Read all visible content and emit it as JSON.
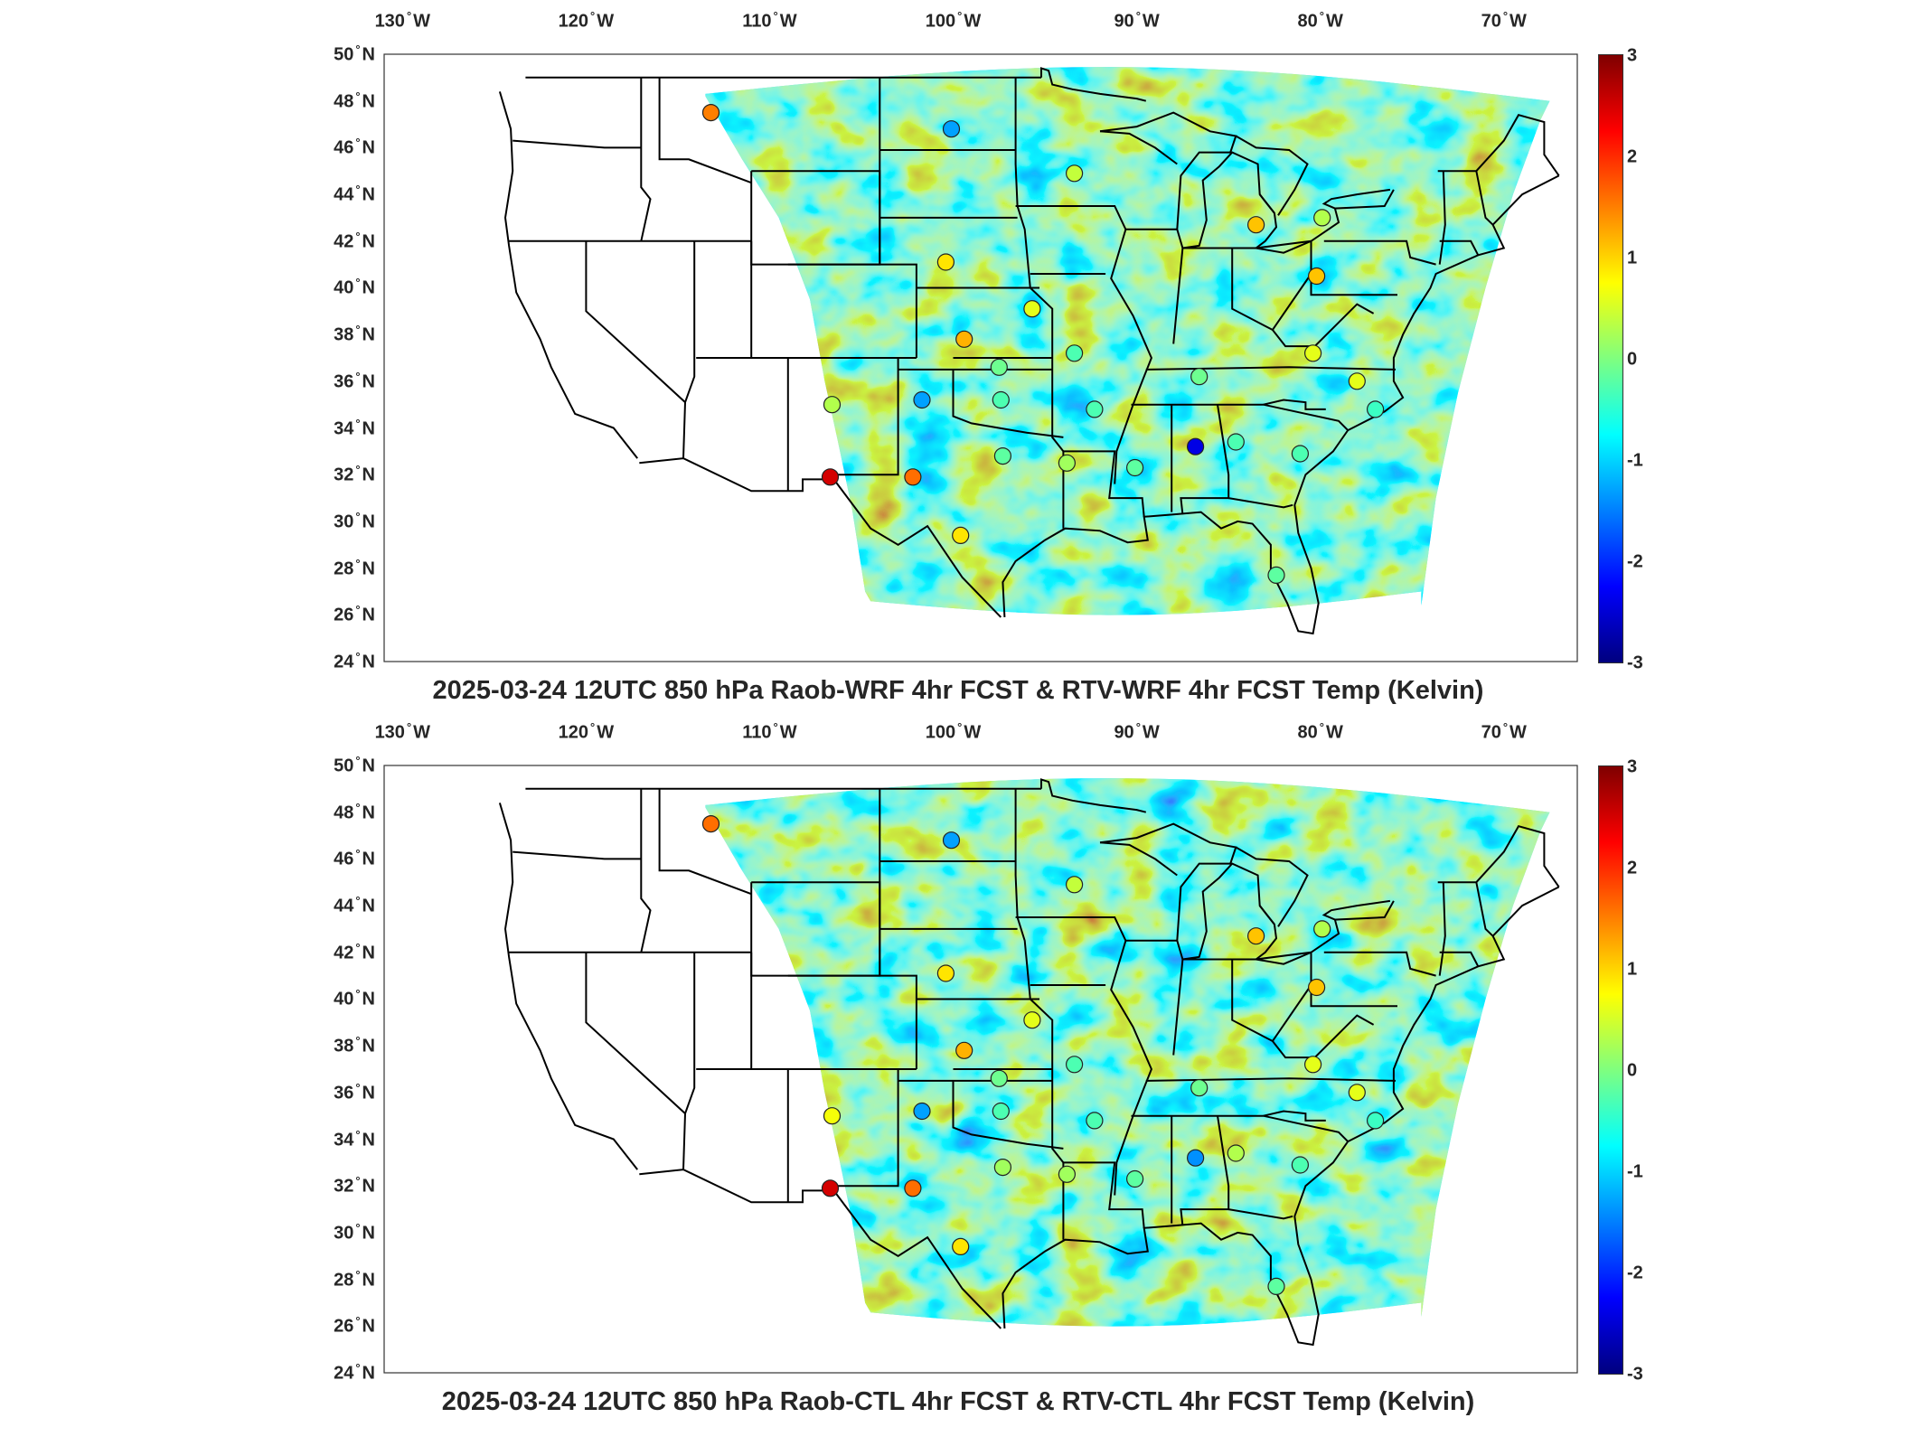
{
  "colors": {
    "colormap": [
      "#00007f",
      "#0000ff",
      "#007fff",
      "#00ffff",
      "#7fff7f",
      "#ffff00",
      "#ff7f00",
      "#ff0000",
      "#7f0000"
    ],
    "border": "#000000",
    "land": "#ffffff"
  },
  "axes": {
    "lon_ticks": [
      "130",
      "120",
      "110",
      "100",
      "90",
      "80",
      "70"
    ],
    "lon_suffix": "W",
    "lat_ticks": [
      "50",
      "48",
      "46",
      "44",
      "42",
      "40",
      "38",
      "36",
      "34",
      "32",
      "30",
      "28",
      "26",
      "24"
    ],
    "lat_suffix": "N",
    "lon_range": [
      -131,
      -66
    ],
    "lat_range": [
      24,
      50
    ]
  },
  "colorbar": {
    "ticks": [
      "3",
      "2",
      "1",
      "0",
      "-1",
      "-2",
      "-3"
    ],
    "range": [
      -3,
      3
    ]
  },
  "panels": [
    {
      "title": "2025-03-24 12UTC 850 hPa Raob-WRF 4hr FCST & RTV-WRF 4hr FCST Temp (Kelvin)",
      "stations": [
        {
          "lon": -113.2,
          "lat": 47.5,
          "v": 1.5
        },
        {
          "lon": -100.1,
          "lat": 46.8,
          "v": -1.3
        },
        {
          "lon": -93.4,
          "lat": 44.9,
          "v": 0.4
        },
        {
          "lon": -83.5,
          "lat": 42.7,
          "v": 1.1
        },
        {
          "lon": -79.9,
          "lat": 43.0,
          "v": 0.3
        },
        {
          "lon": -100.4,
          "lat": 41.1,
          "v": 0.9
        },
        {
          "lon": -80.2,
          "lat": 40.5,
          "v": 1.1
        },
        {
          "lon": -95.7,
          "lat": 39.1,
          "v": 0.6
        },
        {
          "lon": -99.4,
          "lat": 37.8,
          "v": 1.2
        },
        {
          "lon": -93.4,
          "lat": 37.2,
          "v": -0.3
        },
        {
          "lon": -80.4,
          "lat": 37.2,
          "v": 0.6
        },
        {
          "lon": -97.5,
          "lat": 36.6,
          "v": -0.1
        },
        {
          "lon": -86.6,
          "lat": 36.2,
          "v": -0.1
        },
        {
          "lon": -78.0,
          "lat": 36.0,
          "v": 0.6
        },
        {
          "lon": -106.6,
          "lat": 35.0,
          "v": 0.3
        },
        {
          "lon": -101.7,
          "lat": 35.2,
          "v": -1.3
        },
        {
          "lon": -97.4,
          "lat": 35.2,
          "v": -0.3
        },
        {
          "lon": -92.3,
          "lat": 34.8,
          "v": -0.3
        },
        {
          "lon": -77.0,
          "lat": 34.8,
          "v": -0.4
        },
        {
          "lon": -86.8,
          "lat": 33.2,
          "v": -2.4
        },
        {
          "lon": -84.6,
          "lat": 33.4,
          "v": -0.3
        },
        {
          "lon": -97.3,
          "lat": 32.8,
          "v": -0.2
        },
        {
          "lon": -93.8,
          "lat": 32.5,
          "v": 0.2
        },
        {
          "lon": -90.1,
          "lat": 32.3,
          "v": -0.2
        },
        {
          "lon": -81.1,
          "lat": 32.9,
          "v": -0.3
        },
        {
          "lon": -106.7,
          "lat": 31.9,
          "v": 2.5
        },
        {
          "lon": -102.2,
          "lat": 31.9,
          "v": 1.6
        },
        {
          "lon": -99.6,
          "lat": 29.4,
          "v": 0.9
        },
        {
          "lon": -82.4,
          "lat": 27.7,
          "v": -0.2
        }
      ]
    },
    {
      "title": "2025-03-24 12UTC 850 hPa Raob-CTL 4hr FCST & RTV-CTL 4hr FCST Temp (Kelvin)",
      "stations": [
        {
          "lon": -113.2,
          "lat": 47.5,
          "v": 1.6
        },
        {
          "lon": -100.1,
          "lat": 46.8,
          "v": -1.3
        },
        {
          "lon": -93.4,
          "lat": 44.9,
          "v": 0.4
        },
        {
          "lon": -83.5,
          "lat": 42.7,
          "v": 1.1
        },
        {
          "lon": -79.9,
          "lat": 43.0,
          "v": 0.3
        },
        {
          "lon": -100.4,
          "lat": 41.1,
          "v": 0.9
        },
        {
          "lon": -80.2,
          "lat": 40.5,
          "v": 1.1
        },
        {
          "lon": -95.7,
          "lat": 39.1,
          "v": 0.6
        },
        {
          "lon": -99.4,
          "lat": 37.8,
          "v": 1.2
        },
        {
          "lon": -93.4,
          "lat": 37.2,
          "v": -0.3
        },
        {
          "lon": -80.4,
          "lat": 37.2,
          "v": 0.6
        },
        {
          "lon": -97.5,
          "lat": 36.6,
          "v": -0.1
        },
        {
          "lon": -86.6,
          "lat": 36.2,
          "v": -0.1
        },
        {
          "lon": -78.0,
          "lat": 36.0,
          "v": 0.6
        },
        {
          "lon": -106.6,
          "lat": 35.0,
          "v": 0.7
        },
        {
          "lon": -101.7,
          "lat": 35.2,
          "v": -1.3
        },
        {
          "lon": -97.4,
          "lat": 35.2,
          "v": -0.3
        },
        {
          "lon": -92.3,
          "lat": 34.8,
          "v": -0.3
        },
        {
          "lon": -77.0,
          "lat": 34.8,
          "v": -0.4
        },
        {
          "lon": -86.8,
          "lat": 33.2,
          "v": -1.4
        },
        {
          "lon": -84.6,
          "lat": 33.4,
          "v": 0.3
        },
        {
          "lon": -97.3,
          "lat": 32.8,
          "v": 0.2
        },
        {
          "lon": -93.8,
          "lat": 32.5,
          "v": 0.2
        },
        {
          "lon": -90.1,
          "lat": 32.3,
          "v": -0.2
        },
        {
          "lon": -81.1,
          "lat": 32.9,
          "v": -0.3
        },
        {
          "lon": -106.7,
          "lat": 31.9,
          "v": 2.5
        },
        {
          "lon": -102.2,
          "lat": 31.9,
          "v": 1.6
        },
        {
          "lon": -99.6,
          "lat": 29.4,
          "v": 0.9
        },
        {
          "lon": -82.4,
          "lat": 27.7,
          "v": -0.2
        }
      ]
    }
  ]
}
